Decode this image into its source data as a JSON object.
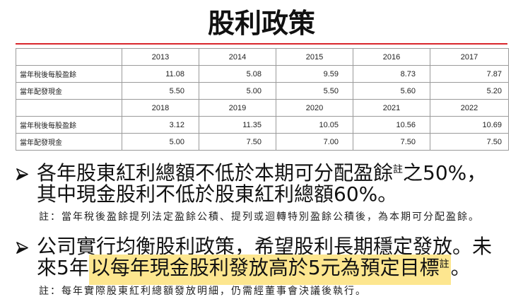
{
  "title": "股利政策",
  "colors": {
    "accent_line": "#d9262c",
    "highlight": "#fde68f",
    "text": "#111111",
    "border": "#9a9a9a"
  },
  "bullet_icon": "arrow-bullet-icon",
  "table": {
    "blocks": [
      {
        "years": [
          "2013",
          "2014",
          "2015",
          "2016",
          "2017"
        ],
        "rows": [
          {
            "label": "當年稅後每股盈餘",
            "values": [
              "11.08",
              "5.08",
              "9.59",
              "8.73",
              "7.87"
            ]
          },
          {
            "label": "當年配發現金",
            "values": [
              "5.50",
              "5.00",
              "5.50",
              "5.60",
              "5.20"
            ]
          }
        ]
      },
      {
        "years": [
          "2018",
          "2019",
          "2020",
          "2021",
          "2022"
        ],
        "rows": [
          {
            "label": "當年稅後每股盈餘",
            "values": [
              "3.12",
              "11.35",
              "10.05",
              "10.56",
              "10.69"
            ]
          },
          {
            "label": "當年配發現金",
            "values": [
              "5.00",
              "7.50",
              "7.00",
              "7.50",
              "7.50"
            ]
          }
        ]
      }
    ]
  },
  "bullets": [
    {
      "line1": {
        "text": "各年股東紅利總額不低於本期可分配盈餘",
        "sup": "註",
        "tail": "之50%，"
      },
      "line2": {
        "text": "其中現金股利不低於股東紅利總額60%。"
      }
    },
    {
      "line1": {
        "text": "公司實行均衡股利政策，希望股利長期穩定發放。未"
      },
      "line2": {
        "pre": "來5年",
        "highlight": "以每年現金股利發放高於5元為預定目標",
        "sup": "註",
        "tail": "。"
      }
    }
  ],
  "notes": [
    "註：當年稅後盈餘提列法定盈餘公積、提列或迴轉特別盈餘公積後，為本期可分配盈餘。",
    "註：每年實際股東紅利總額發放明細，仍需經董事會決議後執行。"
  ]
}
